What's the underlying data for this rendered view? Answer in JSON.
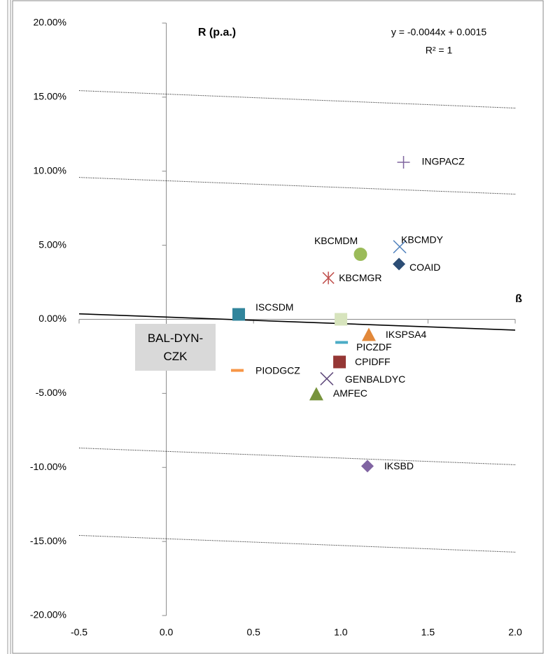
{
  "chart_data": {
    "type": "scatter",
    "y_axis_title": "R (p.a.)",
    "x_axis_title": "ß",
    "equation": "y = -0.0044x + 0.0015",
    "r_squared": "R² = 1",
    "xlim": [
      -0.5,
      2.0
    ],
    "xticks": [
      -0.5,
      {
        "value": 0,
        "label": "0.0"
      },
      0.5,
      {
        "value": 1,
        "label": "1.0"
      },
      1.5,
      {
        "value": 2,
        "label": "2.0"
      }
    ],
    "ylim": [
      -0.2,
      0.2
    ],
    "yticks": [
      {
        "value": -0.2,
        "label": "-20.00%"
      },
      {
        "value": -0.15,
        "label": "-15.00%"
      },
      {
        "value": -0.1,
        "label": "-10.00%"
      },
      {
        "value": -0.05,
        "label": "-5.00%"
      },
      {
        "value": 0,
        "label": "0.00%"
      },
      {
        "value": 0.05,
        "label": "5.00%"
      },
      {
        "value": 0.1,
        "label": "10.00%"
      },
      {
        "value": 0.15,
        "label": "15.00%"
      },
      {
        "value": 0.2,
        "label": "20.00%"
      }
    ],
    "series": [
      {
        "name": "INGPACZ",
        "color": "#7e649e",
        "marker": "plus",
        "x": [
          1.36
        ],
        "values": [
          0.106
        ]
      },
      {
        "name": "KBCMDM",
        "color": "#9bbb59",
        "marker": "circle",
        "x": [
          1.113
        ],
        "values": [
          0.0439
        ]
      },
      {
        "name": "KBCMDY",
        "color": "#4f81bd",
        "marker": "x",
        "x": [
          1.338
        ],
        "values": [
          0.049
        ]
      },
      {
        "name": "COAID",
        "color": "#2c4d75",
        "marker": "diamond",
        "x": [
          1.334
        ],
        "values": [
          0.0373
        ]
      },
      {
        "name": "KBCMGR",
        "color": "#c0504d",
        "marker": "star",
        "x": [
          0.929
        ],
        "values": [
          0.0279
        ]
      },
      {
        "name": "ISCSDM",
        "color": "#31859c",
        "marker": "square",
        "x": [
          0.415
        ],
        "values": [
          0.0033
        ]
      },
      {
        "name": "BAL-DYN-CZK",
        "color": "#d7e4bd",
        "marker": "square",
        "x": [
          1.001
        ],
        "values": [
          0.0
        ]
      },
      {
        "name": "IKSPSA4",
        "color": "#e2883a",
        "marker": "triangle",
        "x": [
          1.161
        ],
        "values": [
          -0.0104
        ]
      },
      {
        "name": "PICZDF",
        "color": "#4bacc6",
        "marker": "dash",
        "x": [
          1.005
        ],
        "values": [
          -0.0156
        ]
      },
      {
        "name": "CPIDFF",
        "color": "#953735",
        "marker": "square",
        "x": [
          0.993
        ],
        "values": [
          -0.0288
        ]
      },
      {
        "name": "PIODGCZ",
        "color": "#f79646",
        "marker": "dash",
        "x": [
          0.407
        ],
        "values": [
          -0.0345
        ]
      },
      {
        "name": "GENBALDYC",
        "color": "#604a7b",
        "marker": "x",
        "x": [
          0.92
        ],
        "values": [
          -0.0401
        ]
      },
      {
        "name": "AMFEC",
        "color": "#77933c",
        "marker": "triangle",
        "x": [
          0.86
        ],
        "values": [
          -0.0505
        ]
      },
      {
        "name": "IKSBD",
        "color": "#8064a2",
        "marker": "diamond",
        "x": [
          1.153
        ],
        "values": [
          -0.0991
        ]
      }
    ],
    "trendline": {
      "x": [
        -0.5,
        2.0
      ],
      "values": [
        0.0037,
        -0.0073
      ]
    },
    "guide_lines": [
      {
        "x": [
          -0.5,
          2.0
        ],
        "values": [
          0.1544,
          0.1426
        ]
      },
      {
        "x": [
          -0.5,
          2.0
        ],
        "values": [
          0.0958,
          0.0845
        ]
      },
      {
        "x": [
          -0.5,
          2.0
        ],
        "values": [
          -0.0869,
          -0.0982
        ]
      },
      {
        "x": [
          -0.5,
          2.0
        ],
        "values": [
          -0.1459,
          -0.1572
        ]
      }
    ]
  }
}
